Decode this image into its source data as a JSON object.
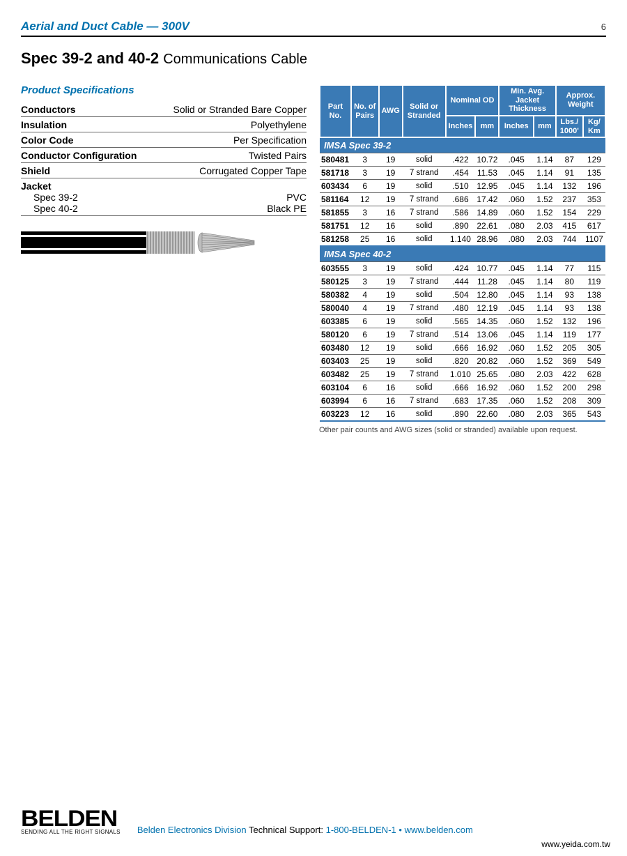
{
  "colors": {
    "accent_blue": "#0071ae",
    "table_header_bg": "#3a7ab5",
    "rule": "#666666",
    "text": "#000000",
    "footer_gray": "#555555"
  },
  "header": {
    "section_title": "Aerial and Duct Cable — 300V",
    "page_number": "6"
  },
  "title": {
    "bold": "Spec 39-2 and 40-2",
    "light": "Communications Cable"
  },
  "product_specs": {
    "heading": "Product Specifications",
    "rows": [
      {
        "k": "Conductors",
        "v": "Solid or Stranded Bare Copper"
      },
      {
        "k": "Insulation",
        "v": "Polyethylene"
      },
      {
        "k": "Color Code",
        "v": "Per Specification"
      },
      {
        "k": "Conductor Configuration",
        "v": "Twisted Pairs"
      },
      {
        "k": "Shield",
        "v": "Corrugated Copper Tape"
      }
    ],
    "jacket": {
      "label": "Jacket",
      "subs": [
        {
          "k": "Spec 39-2",
          "v": "PVC"
        },
        {
          "k": "Spec 40-2",
          "v": "Black PE"
        }
      ]
    }
  },
  "table": {
    "header_row1": {
      "part": "Part No.",
      "pairs": "No. of Pairs",
      "awg": "AWG",
      "strand": "Solid or Stranded",
      "nom_od": "Nominal OD",
      "jacket": "Min. Avg. Jacket Thickness",
      "weight": "Approx. Weight"
    },
    "header_row2": {
      "in": "Inches",
      "mm": "mm",
      "lbs": "Lbs./ 1000'",
      "kg": "Kg/ Km"
    },
    "sections": [
      {
        "title": "IMSA Spec 39-2",
        "rows": [
          [
            "580481",
            "3",
            "19",
            "solid",
            ".422",
            "10.72",
            ".045",
            "1.14",
            "87",
            "129"
          ],
          [
            "581718",
            "3",
            "19",
            "7 strand",
            ".454",
            "11.53",
            ".045",
            "1.14",
            "91",
            "135"
          ],
          [
            "603434",
            "6",
            "19",
            "solid",
            ".510",
            "12.95",
            ".045",
            "1.14",
            "132",
            "196"
          ],
          [
            "581164",
            "12",
            "19",
            "7 strand",
            ".686",
            "17.42",
            ".060",
            "1.52",
            "237",
            "353"
          ],
          [
            "581855",
            "3",
            "16",
            "7 strand",
            ".586",
            "14.89",
            ".060",
            "1.52",
            "154",
            "229"
          ],
          [
            "581751",
            "12",
            "16",
            "solid",
            ".890",
            "22.61",
            ".080",
            "2.03",
            "415",
            "617"
          ],
          [
            "581258",
            "25",
            "16",
            "solid",
            "1.140",
            "28.96",
            ".080",
            "2.03",
            "744",
            "1107"
          ]
        ]
      },
      {
        "title": "IMSA Spec 40-2",
        "rows": [
          [
            "603555",
            "3",
            "19",
            "solid",
            ".424",
            "10.77",
            ".045",
            "1.14",
            "77",
            "115"
          ],
          [
            "580125",
            "3",
            "19",
            "7 strand",
            ".444",
            "11.28",
            ".045",
            "1.14",
            "80",
            "119"
          ],
          [
            "580382",
            "4",
            "19",
            "solid",
            ".504",
            "12.80",
            ".045",
            "1.14",
            "93",
            "138"
          ],
          [
            "580040",
            "4",
            "19",
            "7 strand",
            ".480",
            "12.19",
            ".045",
            "1.14",
            "93",
            "138"
          ],
          [
            "603385",
            "6",
            "19",
            "solid",
            ".565",
            "14.35",
            ".060",
            "1.52",
            "132",
            "196"
          ],
          [
            "580120",
            "6",
            "19",
            "7 strand",
            ".514",
            "13.06",
            ".045",
            "1.14",
            "119",
            "177"
          ],
          [
            "603480",
            "12",
            "19",
            "solid",
            ".666",
            "16.92",
            ".060",
            "1.52",
            "205",
            "305"
          ],
          [
            "603403",
            "25",
            "19",
            "solid",
            ".820",
            "20.82",
            ".060",
            "1.52",
            "369",
            "549"
          ],
          [
            "603482",
            "25",
            "19",
            "7 strand",
            "1.010",
            "25.65",
            ".080",
            "2.03",
            "422",
            "628"
          ],
          [
            "603104",
            "6",
            "16",
            "solid",
            ".666",
            "16.92",
            ".060",
            "1.52",
            "200",
            "298"
          ],
          [
            "603994",
            "6",
            "16",
            "7 strand",
            ".683",
            "17.35",
            ".060",
            "1.52",
            "208",
            "309"
          ],
          [
            "603223",
            "12",
            "16",
            "solid",
            ".890",
            "22.60",
            ".080",
            "2.03",
            "365",
            "543"
          ]
        ]
      }
    ],
    "footnote": "Other pair counts and AWG sizes (solid or stranded) available upon request."
  },
  "footer": {
    "logo": "BELDEN",
    "tagline": "SENDING ALL THE RIGHT SIGNALS",
    "division": "Belden Electronics Division",
    "support_label": "Technical Support:",
    "phone": "1-800-BELDEN-1",
    "sep": "•",
    "url": "www.belden.com",
    "watermark": "www.yeida.com.tw"
  }
}
